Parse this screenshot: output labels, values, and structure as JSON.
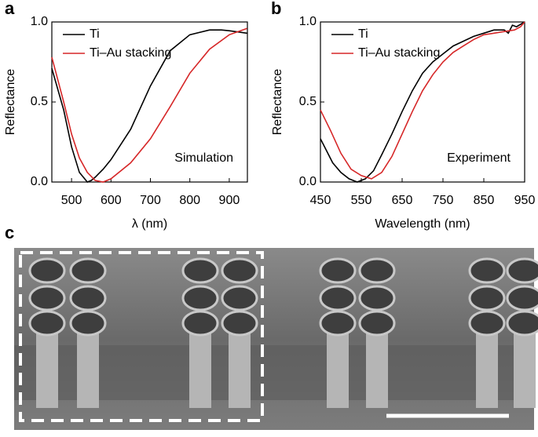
{
  "chart_data": [
    {
      "type": "line",
      "panel_label": "a",
      "annotation": "Simulation",
      "xlabel": "λ (nm)",
      "ylabel": "Reflectance",
      "xlim": [
        450,
        946
      ],
      "xticks": [
        500,
        600,
        700,
        800,
        900
      ],
      "ylim": [
        0,
        1
      ],
      "yticks": [
        {
          "value": 0,
          "label": "0.0"
        },
        {
          "value": 0.5,
          "label": "0.5"
        },
        {
          "value": 1,
          "label": "1.0"
        }
      ],
      "legend": "upper left",
      "series": [
        {
          "name": "Ti",
          "color": "#000000",
          "x": [
            450,
            480,
            500,
            520,
            540,
            550,
            560,
            580,
            600,
            650,
            700,
            750,
            800,
            850,
            880,
            900,
            945
          ],
          "values": [
            0.71,
            0.45,
            0.22,
            0.06,
            0.0,
            0.01,
            0.03,
            0.08,
            0.14,
            0.33,
            0.6,
            0.82,
            0.92,
            0.95,
            0.95,
            0.945,
            0.93
          ]
        },
        {
          "name": "Ti–Au stacking",
          "color": "#d62728",
          "x": [
            450,
            480,
            500,
            520,
            540,
            560,
            580,
            600,
            650,
            700,
            750,
            800,
            850,
            900,
            945
          ],
          "values": [
            0.78,
            0.5,
            0.3,
            0.15,
            0.06,
            0.01,
            0.0,
            0.02,
            0.12,
            0.27,
            0.47,
            0.68,
            0.83,
            0.92,
            0.96
          ]
        }
      ]
    },
    {
      "type": "line",
      "panel_label": "b",
      "annotation": "Experiment",
      "xlabel": "Wavelength (nm)",
      "ylabel": "Reflectance",
      "xlim": [
        450,
        950
      ],
      "xticks": [
        450,
        550,
        650,
        750,
        850,
        950
      ],
      "ylim": [
        0,
        1
      ],
      "yticks": [
        {
          "value": 0,
          "label": "0.0"
        },
        {
          "value": 0.5,
          "label": "0.5"
        },
        {
          "value": 1,
          "label": "1.0"
        }
      ],
      "legend": "upper left",
      "series": [
        {
          "name": "Ti",
          "color": "#000000",
          "x": [
            450,
            480,
            500,
            520,
            540,
            560,
            580,
            600,
            625,
            650,
            675,
            700,
            725,
            750,
            775,
            800,
            825,
            850,
            875,
            900,
            910,
            920,
            930,
            950
          ],
          "values": [
            0.27,
            0.12,
            0.06,
            0.02,
            0.0,
            0.02,
            0.07,
            0.17,
            0.3,
            0.44,
            0.57,
            0.68,
            0.75,
            0.8,
            0.85,
            0.88,
            0.91,
            0.93,
            0.95,
            0.95,
            0.93,
            0.98,
            0.97,
            1.0
          ]
        },
        {
          "name": "Ti–Au stacking",
          "color": "#d62728",
          "x": [
            450,
            475,
            500,
            525,
            550,
            575,
            600,
            625,
            650,
            675,
            700,
            725,
            750,
            775,
            800,
            825,
            850,
            875,
            900,
            925,
            940,
            950
          ],
          "values": [
            0.45,
            0.32,
            0.18,
            0.08,
            0.04,
            0.02,
            0.06,
            0.16,
            0.3,
            0.44,
            0.57,
            0.67,
            0.75,
            0.81,
            0.85,
            0.89,
            0.92,
            0.93,
            0.94,
            0.95,
            0.97,
            1.0
          ]
        }
      ]
    }
  ],
  "panel_c": {
    "label": "c"
  }
}
